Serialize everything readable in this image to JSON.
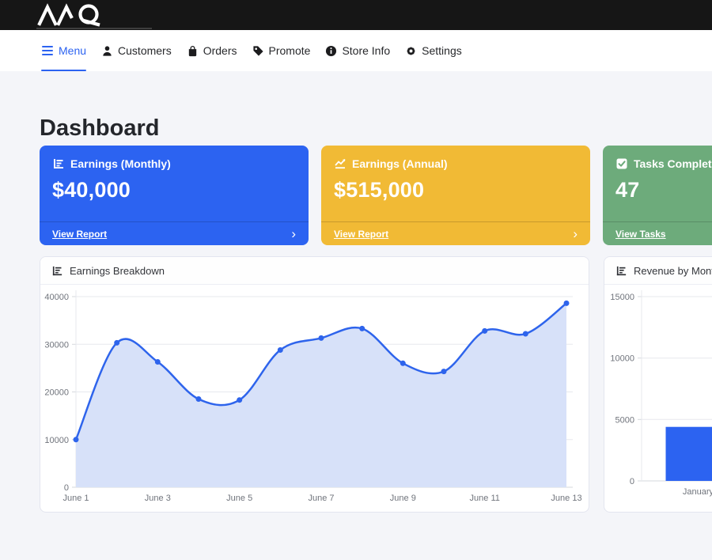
{
  "brand": {
    "name": "MQ"
  },
  "nav": {
    "items": [
      {
        "label": "Menu",
        "icon": "hamburger-icon",
        "active": true
      },
      {
        "label": "Customers",
        "icon": "person-icon"
      },
      {
        "label": "Orders",
        "icon": "bag-icon"
      },
      {
        "label": "Promote",
        "icon": "tag-icon"
      },
      {
        "label": "Store Info",
        "icon": "info-icon"
      },
      {
        "label": "Settings",
        "icon": "gear-icon"
      }
    ]
  },
  "page_title": "Dashboard",
  "stat_cards": [
    {
      "label": "Earnings (Monthly)",
      "value": "$40,000",
      "link": "View Report",
      "icon": "chart-bars-icon",
      "color": "#2c63f1"
    },
    {
      "label": "Earnings (Annual)",
      "value": "$515,000",
      "link": "View Report",
      "icon": "chart-line-icon",
      "color": "#f1ba35"
    },
    {
      "label": "Tasks Completed",
      "value": "47",
      "link": "View Tasks",
      "icon": "check-square-icon",
      "color": "#6dab7b"
    }
  ],
  "chart_data": [
    {
      "type": "area",
      "title": "Earnings Breakdown",
      "x": [
        "June 1",
        "June 2",
        "June 3",
        "June 4",
        "June 5",
        "June 6",
        "June 7",
        "June 8",
        "June 9",
        "June 10",
        "June 11",
        "June 12",
        "June 13"
      ],
      "values": [
        10000,
        30300,
        26300,
        18500,
        18300,
        28800,
        31300,
        33300,
        26000,
        24300,
        32800,
        32200,
        38600
      ],
      "ylim": [
        0,
        40000
      ],
      "yticks": [
        0,
        10000,
        20000,
        30000,
        40000
      ],
      "x_tick_labels": [
        "June 1",
        "June 3",
        "June 5",
        "June 7",
        "June 9",
        "June 11",
        "June 13"
      ],
      "xlabel": "",
      "ylabel": "",
      "grid": "horizontal",
      "legend": "none"
    },
    {
      "type": "bar",
      "title": "Revenue by Month",
      "categories": [
        "January"
      ],
      "values": [
        4400
      ],
      "ylim": [
        0,
        15000
      ],
      "yticks": [
        0,
        5000,
        10000,
        15000
      ],
      "xlabel": "",
      "ylabel": "",
      "grid": "horizontal",
      "legend": "none"
    }
  ],
  "colors": {
    "primary": "#2c63f1",
    "warning": "#f1ba35",
    "success": "#6dab7b",
    "topbar_bg": "#161616",
    "page_bg": "#f4f5f9",
    "line": "#2e64ec",
    "area_fill": "#d7e1f9",
    "grid": "#e7e8ee",
    "zero_line": "#d6d8de",
    "axis_text": "#70747c"
  }
}
